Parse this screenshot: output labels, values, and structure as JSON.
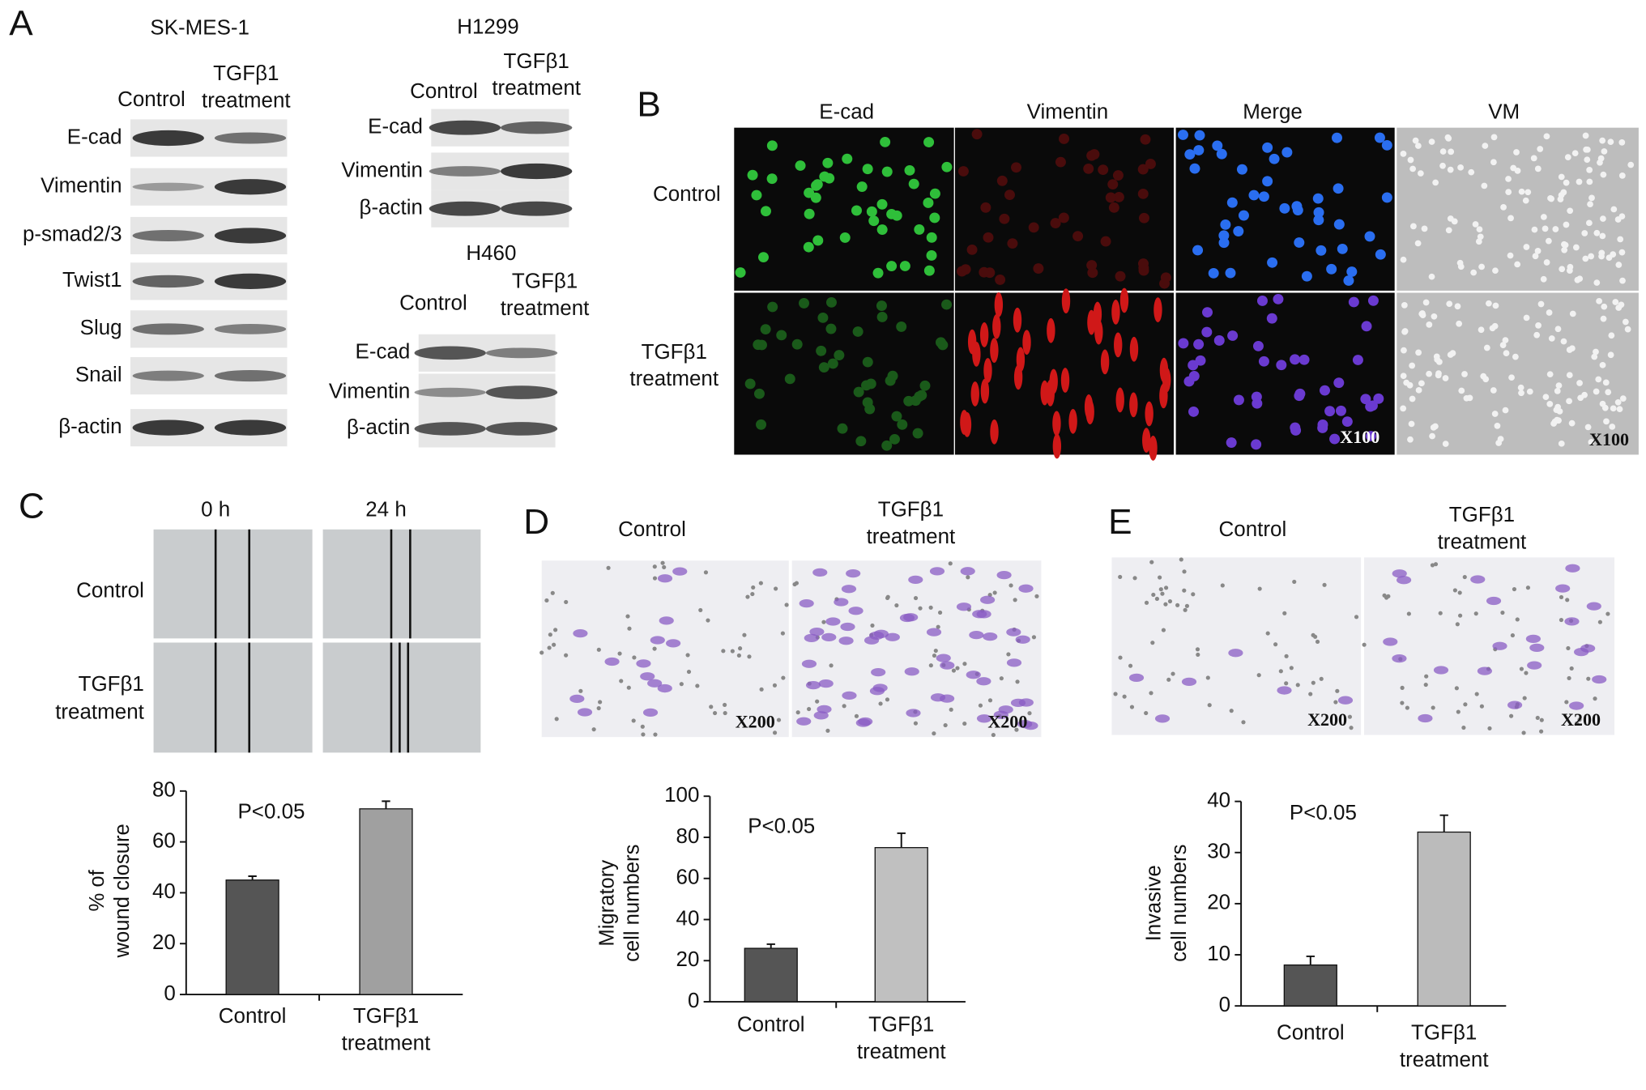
{
  "panel_labels": [
    "A",
    "B",
    "C",
    "D",
    "E"
  ],
  "blot_sk": {
    "cell_line": "SK-MES-1",
    "columns": [
      "Control",
      "TGFβ1\ntreatment"
    ],
    "rows": [
      "E-cad",
      "Vimentin",
      "p-smad2/3",
      "Twist1",
      "Slug",
      "Snail",
      "β-actin"
    ]
  },
  "blot_h1299": {
    "cell_line": "H1299",
    "columns": [
      "Control",
      "TGFβ1\ntreatment"
    ],
    "rows": [
      "E-cad",
      "Vimentin",
      "β-actin"
    ]
  },
  "blot_h460": {
    "cell_line": "H460",
    "columns": [
      "Control",
      "TGFβ1\ntreatment"
    ],
    "rows": [
      "E-cad",
      "Vimentin",
      "β-actin"
    ]
  },
  "if_panel": {
    "columns": [
      "E-cad",
      "Vimentin",
      "Merge",
      "VM"
    ],
    "rows": [
      "Control",
      "TGFβ1\ntreatment"
    ],
    "magnification": "X100"
  },
  "wound": {
    "columns": [
      "0 h",
      "24 h"
    ],
    "rows": [
      "Control",
      "TGFβ1\ntreatment"
    ]
  },
  "migration": {
    "columns": [
      "Control",
      "TGFβ1\ntreatment"
    ],
    "magnification": "X200"
  },
  "invasion": {
    "columns": [
      "Control",
      "TGFβ1\ntreatment"
    ],
    "magnification": "X200"
  },
  "chart_data": [
    {
      "type": "bar",
      "y_label": "% of\nwound closure",
      "annotation": "P<0.05",
      "categories": [
        "Control",
        "TGFβ1\ntreatment"
      ],
      "values": [
        45,
        73
      ],
      "errors": [
        1.5,
        3
      ],
      "colors": [
        "#555555",
        "#a0a0a0"
      ],
      "ylim": [
        0,
        80
      ],
      "yticks": [
        0,
        20,
        40,
        60,
        80
      ]
    },
    {
      "type": "bar",
      "y_label": "Migratory\ncell numbers",
      "annotation": "P<0.05",
      "categories": [
        "Control",
        "TGFβ1\ntreatment"
      ],
      "values": [
        26,
        75
      ],
      "errors": [
        2,
        7
      ],
      "colors": [
        "#555555",
        "#c0c0c0"
      ],
      "ylim": [
        0,
        100
      ],
      "yticks": [
        0,
        20,
        40,
        60,
        80,
        100
      ]
    },
    {
      "type": "bar",
      "y_label": "Invasive\ncell numbers",
      "annotation": "P<0.05",
      "categories": [
        "Control",
        "TGFβ1\ntreatment"
      ],
      "values": [
        8,
        34
      ],
      "errors": [
        1.7,
        3.3
      ],
      "colors": [
        "#555555",
        "#bbbbbb"
      ],
      "ylim": [
        0,
        40
      ],
      "yticks": [
        0,
        10,
        20,
        30,
        40
      ]
    }
  ]
}
